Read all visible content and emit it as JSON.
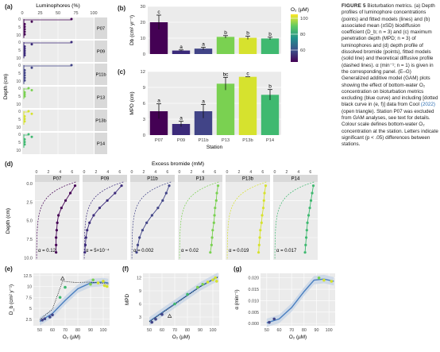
{
  "figure": {
    "panel_labels": {
      "a": "(a)",
      "b": "(b)",
      "c": "(c)",
      "d": "(d)",
      "e": "(e)",
      "f": "(f)",
      "g": "(g)"
    },
    "caption": {
      "title": "FIGURE 5",
      "title_rest": "Bioturbation metrics.",
      "body": "(a) Depth profiles of luminophore concentrations (points) and fitted models (lines) and (b) associated mean (±SD) biodiffusion coefficient (D_b; n = 3) and (c) maximum penetration depth (MPD; n = 3) of luminophores and (d) depth profile of dissolved bromide (points), fitted models (solid line) and theoretical diffusive profile (dashed lines). α (min⁻¹; n = 1) is given in the corresponding panel. (E–G) Generalized additive model (GAM) plots showing the effect of bottom-water O₂ concentration on bioturbation metrics excluding (blue curve) and including [dotted black curve in (e, f)] data from Cool",
      "cite": "(2022)",
      "body2": "(open triangle). Station P07 was excluded from GAM analyses, see text for details. Colour scale defines bottom-water O₂ concentration at the station. Letters indicate significant (p < .05) differences between stations."
    }
  },
  "colors": {
    "P07": "#440154",
    "P09": "#3b2a7a",
    "P11b": "#414487",
    "P13": "#7ad151",
    "P13b": "#d6e22e",
    "P14": "#3fb970",
    "fit_blue": "#4a7fc0",
    "band": "#c9d6e6"
  },
  "panel_a": {
    "top_label": "Luminophores (%)",
    "ticks": [
      "0",
      "25",
      "50",
      "75",
      "100"
    ],
    "ylabel": "Depth (cm)",
    "depth_ticks": [
      "0",
      "5",
      "10"
    ],
    "stations": [
      "P07",
      "P09",
      "P11b",
      "P13",
      "P13b",
      "P14"
    ]
  },
  "chart_data": [
    {
      "id": "b",
      "type": "bar",
      "ylabel": "Db (cm² yr⁻¹)",
      "categories": [
        "P07",
        "P09",
        "P11b",
        "P13",
        "P13b",
        "P14"
      ],
      "values": [
        20,
        2.2,
        3.4,
        10.8,
        10.2,
        9.8
      ],
      "errors": [
        4.5,
        0.4,
        0.8,
        0.8,
        1.0,
        0.8
      ],
      "letters": [
        "c",
        "a",
        "a",
        "b",
        "b",
        "b"
      ],
      "ylim": [
        0,
        30
      ],
      "yticks": [
        0,
        10,
        20,
        30
      ],
      "legend": {
        "title": "O₂ (µM)",
        "ticks": [
          "100",
          "80",
          "60"
        ],
        "range": [
          45,
          105
        ]
      }
    },
    {
      "id": "c",
      "type": "bar",
      "ylabel": "MPD (cm)",
      "xlabel": "Station",
      "categories": [
        "P07",
        "P09",
        "P11b",
        "P13",
        "P13b",
        "P14"
      ],
      "values": [
        4.5,
        2.1,
        4.5,
        9.7,
        11.0,
        7.6
      ],
      "errors": [
        1.4,
        0.5,
        1.3,
        1.2,
        0.0,
        1.0
      ],
      "letters": [
        "a",
        "a",
        "a",
        "bc",
        "c",
        "b"
      ],
      "ylim": [
        0,
        12
      ],
      "yticks": [
        0,
        3,
        6,
        9,
        12
      ]
    },
    {
      "id": "d",
      "type": "scatter",
      "top_label": "Excess bromide (mM)",
      "ylabel": "Depth (cm)",
      "xticks": [
        "0",
        "2",
        "4",
        "6"
      ],
      "yticks": [
        "0.0",
        "2.5",
        "5.0",
        "7.5",
        "10.0"
      ],
      "stations": [
        "P07",
        "P09",
        "P11b",
        "P13",
        "P13b",
        "P14"
      ],
      "alpha_labels": [
        "α = 0.12",
        "α = 5×10⁻⁴",
        "α = 0.002",
        "α = 0.02",
        "α = 0.019",
        "α = 0.017"
      ],
      "points": [
        [
          [
            6.5,
            0.5
          ],
          [
            5.7,
            1.5
          ],
          [
            4.9,
            2.5
          ],
          [
            4.2,
            3.5
          ],
          [
            3.7,
            4.5
          ],
          [
            3.5,
            5.5
          ],
          [
            3.4,
            6.5
          ],
          [
            3.3,
            7.5
          ],
          [
            3.3,
            8.5
          ],
          [
            3.3,
            9.5
          ]
        ],
        [
          [
            6.3,
            0.5
          ],
          [
            5.2,
            1.5
          ],
          [
            3.9,
            2.5
          ],
          [
            2.6,
            3.5
          ],
          [
            1.6,
            4.5
          ],
          [
            0.9,
            5.5
          ],
          [
            0.5,
            6.5
          ],
          [
            0.3,
            7.5
          ],
          [
            0.2,
            8.5
          ],
          [
            0.1,
            9.5
          ]
        ],
        [
          [
            6.3,
            0.5
          ],
          [
            5.8,
            1.5
          ],
          [
            5.2,
            2.5
          ],
          [
            4.4,
            3.5
          ],
          [
            3.4,
            4.5
          ],
          [
            2.5,
            5.5
          ],
          [
            1.8,
            6.5
          ],
          [
            1.3,
            7.5
          ],
          [
            1.0,
            8.5
          ],
          [
            0.8,
            9.5
          ]
        ],
        [
          [
            6.5,
            0.5
          ],
          [
            6.3,
            1.5
          ],
          [
            6.2,
            2.5
          ],
          [
            6.0,
            3.5
          ],
          [
            5.9,
            4.5
          ],
          [
            5.8,
            5.5
          ],
          [
            5.6,
            6.5
          ],
          [
            5.5,
            7.5
          ],
          [
            5.4,
            8.5
          ],
          [
            5.2,
            9.5
          ]
        ],
        [
          [
            6.5,
            0.5
          ],
          [
            6.3,
            1.5
          ],
          [
            6.2,
            2.5
          ],
          [
            6.1,
            3.5
          ],
          [
            5.9,
            4.5
          ],
          [
            5.8,
            5.5
          ],
          [
            5.6,
            6.5
          ],
          [
            5.5,
            7.5
          ],
          [
            5.4,
            8.5
          ],
          [
            5.3,
            9.5
          ]
        ],
        [
          [
            6.5,
            0.5
          ],
          [
            6.3,
            1.5
          ],
          [
            6.1,
            2.5
          ],
          [
            5.9,
            3.5
          ],
          [
            5.7,
            4.5
          ],
          [
            5.5,
            5.5
          ],
          [
            5.4,
            6.5
          ],
          [
            5.3,
            7.5
          ],
          [
            5.2,
            8.5
          ],
          [
            5.1,
            9.5
          ]
        ]
      ]
    },
    {
      "id": "e",
      "type": "scatter",
      "xlabel": "O₂ (µM)",
      "ylabel": "D_b (cm² y⁻¹)",
      "xticks": [
        50,
        60,
        70,
        80,
        90,
        100
      ],
      "yticks": [
        2.5,
        5.0,
        7.5,
        10.0,
        12.5
      ],
      "xlim": [
        45,
        105
      ],
      "ylim": [
        1,
        13
      ],
      "points": [
        [
          52,
          2.3
        ],
        [
          54,
          2.6
        ],
        [
          58,
          3.0
        ],
        [
          60,
          3.5
        ],
        [
          66,
          7.5
        ],
        [
          70,
          9.8
        ],
        [
          90,
          10.5
        ],
        [
          92,
          11.5
        ],
        [
          96,
          10.8
        ],
        [
          100,
          11.2
        ],
        [
          101,
          10.2
        ],
        [
          103,
          10.0
        ]
      ],
      "triangle": [
        68,
        11.8
      ],
      "gam": [
        [
          50,
          2.0
        ],
        [
          60,
          3.8
        ],
        [
          70,
          6.8
        ],
        [
          80,
          9.5
        ],
        [
          90,
          10.8
        ],
        [
          100,
          11.0
        ],
        [
          104,
          10.8
        ]
      ],
      "dotted": [
        [
          50,
          2.4
        ],
        [
          60,
          4.8
        ],
        [
          68,
          11.2
        ],
        [
          78,
          10.9
        ],
        [
          90,
          11.0
        ],
        [
          104,
          10.6
        ]
      ]
    },
    {
      "id": "f",
      "type": "scatter",
      "xlabel": "O₂ (µM)",
      "ylabel": "MPD",
      "xticks": [
        50,
        60,
        70,
        80,
        90,
        100
      ],
      "yticks": [
        3,
        6,
        9,
        12
      ],
      "xlim": [
        45,
        105
      ],
      "ylim": [
        1,
        13
      ],
      "points": [
        [
          52,
          1.8
        ],
        [
          55,
          2.5
        ],
        [
          60,
          3.6
        ],
        [
          70,
          6.0
        ],
        [
          80,
          8.2
        ],
        [
          88,
          9.8
        ],
        [
          92,
          10.5
        ],
        [
          96,
          11.0
        ],
        [
          100,
          11.5
        ],
        [
          102,
          12.0
        ],
        [
          103,
          11.2
        ]
      ],
      "triangle": [
        66,
        3.2
      ],
      "gam": [
        [
          50,
          2.0
        ],
        [
          60,
          4.0
        ],
        [
          70,
          6.0
        ],
        [
          80,
          8.0
        ],
        [
          90,
          10.0
        ],
        [
          100,
          11.6
        ],
        [
          104,
          12.2
        ]
      ],
      "dotted": [
        [
          50,
          1.9
        ],
        [
          60,
          3.9
        ],
        [
          70,
          5.9
        ],
        [
          80,
          7.9
        ],
        [
          90,
          9.9
        ],
        [
          100,
          11.5
        ],
        [
          104,
          12.1
        ]
      ]
    },
    {
      "id": "g",
      "type": "scatter",
      "xlabel": "O₂ (µM)",
      "ylabel": "α (min⁻¹)",
      "xticks": [
        50,
        60,
        70,
        80,
        90,
        100
      ],
      "yticks": [
        0.0,
        0.005,
        0.01,
        0.015,
        0.02
      ],
      "xlim": [
        45,
        105
      ],
      "ylim": [
        -0.001,
        0.022
      ],
      "points": [
        [
          52,
          0.0005
        ],
        [
          56,
          0.002
        ],
        [
          92,
          0.02
        ],
        [
          96,
          0.019
        ],
        [
          102,
          0.0185
        ]
      ],
      "gam": [
        [
          50,
          0.0003
        ],
        [
          60,
          0.002
        ],
        [
          70,
          0.007
        ],
        [
          80,
          0.014
        ],
        [
          88,
          0.019
        ],
        [
          96,
          0.0195
        ],
        [
          104,
          0.0185
        ]
      ]
    }
  ]
}
